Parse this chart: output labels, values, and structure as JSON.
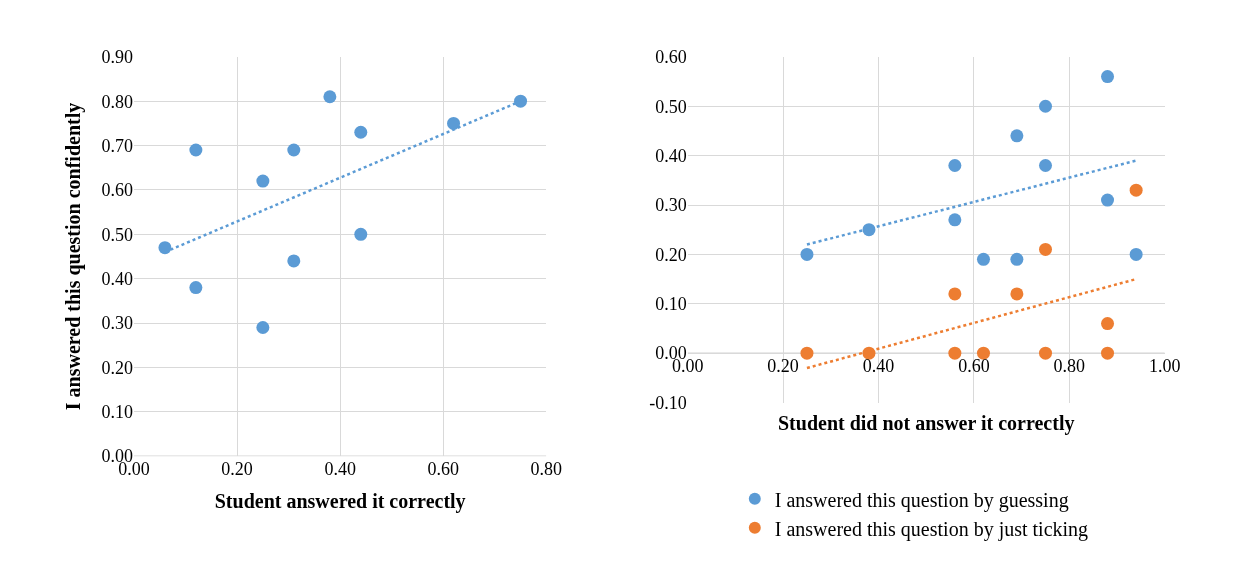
{
  "chart_data": [
    {
      "type": "scatter",
      "xlabel": "Student answered it correctly",
      "ylabel": "I answered this question confidently",
      "xlim": [
        0,
        0.8
      ],
      "ylim": [
        0,
        0.9
      ],
      "xticks": [
        {
          "value": 0,
          "label": "0.00"
        },
        {
          "value": 0.2,
          "label": "0.20"
        },
        {
          "value": 0.4,
          "label": "0.40"
        },
        {
          "value": 0.6,
          "label": "0.60"
        },
        {
          "value": 0.8,
          "label": "0.80"
        }
      ],
      "yticks": [
        {
          "value": 0,
          "label": "0.00"
        },
        {
          "value": 0.1,
          "label": "0.10"
        },
        {
          "value": 0.2,
          "label": "0.20"
        },
        {
          "value": 0.3,
          "label": "0.30"
        },
        {
          "value": 0.4,
          "label": "0.40"
        },
        {
          "value": 0.5,
          "label": "0.50"
        },
        {
          "value": 0.6,
          "label": "0.60"
        },
        {
          "value": 0.7,
          "label": "0.70"
        },
        {
          "value": 0.8,
          "label": "0.80"
        },
        {
          "value": 0.9,
          "label": "0.90"
        }
      ],
      "grid": true,
      "series": [
        {
          "marker": "circle",
          "color": "#5b9bd5",
          "x": [
            0.06,
            0.12,
            0.12,
            0.25,
            0.25,
            0.31,
            0.31,
            0.38,
            0.44,
            0.44,
            0.62,
            0.75
          ],
          "values": [
            0.47,
            0.69,
            0.38,
            0.62,
            0.29,
            0.69,
            0.44,
            0.81,
            0.73,
            0.5,
            0.75,
            0.8
          ]
        },
        {
          "type": "line",
          "line_style": "dotted",
          "color": "#5b9bd5",
          "x": [
            0.06,
            0.75
          ],
          "values": [
            0.46,
            0.8
          ]
        }
      ]
    },
    {
      "type": "scatter",
      "xlabel": "Student did not answer it correctly",
      "xlim": [
        0,
        1
      ],
      "ylim": [
        -0.1,
        0.6
      ],
      "xticks": [
        {
          "value": 0,
          "label": "0.00"
        },
        {
          "value": 0.2,
          "label": "0.20"
        },
        {
          "value": 0.4,
          "label": "0.40"
        },
        {
          "value": 0.6,
          "label": "0.60"
        },
        {
          "value": 0.8,
          "label": "0.80"
        },
        {
          "value": 1,
          "label": "1.00"
        }
      ],
      "yticks": [
        {
          "value": -0.1,
          "label": "-0.10"
        },
        {
          "value": 0,
          "label": "0.00"
        },
        {
          "value": 0.1,
          "label": "0.10"
        },
        {
          "value": 0.2,
          "label": "0.20"
        },
        {
          "value": 0.3,
          "label": "0.30"
        },
        {
          "value": 0.4,
          "label": "0.40"
        },
        {
          "value": 0.5,
          "label": "0.50"
        },
        {
          "value": 0.6,
          "label": "0.60"
        }
      ],
      "grid": true,
      "legend": "bottom",
      "series": [
        {
          "name": "I answered this question by guessing",
          "marker": "circle",
          "color": "#5b9bd5",
          "x": [
            0.25,
            0.38,
            0.56,
            0.56,
            0.62,
            0.69,
            0.69,
            0.75,
            0.75,
            0.88,
            0.88,
            0.94
          ],
          "values": [
            0.2,
            0.25,
            0.38,
            0.27,
            0.19,
            0.44,
            0.19,
            0.5,
            0.38,
            0.56,
            0.31,
            0.2
          ]
        },
        {
          "name": "I answered this question by just ticking",
          "marker": "circle",
          "color": "#ed7d31",
          "x": [
            0.25,
            0.38,
            0.56,
            0.56,
            0.62,
            0.69,
            0.75,
            0.75,
            0.88,
            0.88,
            0.94
          ],
          "values": [
            0,
            0,
            0.12,
            0,
            0,
            0.12,
            0.21,
            0,
            0.06,
            0,
            0.33
          ]
        },
        {
          "type": "line",
          "line_style": "dotted",
          "color": "#5b9bd5",
          "x": [
            0.25,
            0.94
          ],
          "values": [
            0.22,
            0.39
          ]
        },
        {
          "type": "line",
          "line_style": "dotted",
          "color": "#ed7d31",
          "x": [
            0.25,
            0.94
          ],
          "values": [
            -0.03,
            0.15
          ]
        }
      ]
    }
  ]
}
